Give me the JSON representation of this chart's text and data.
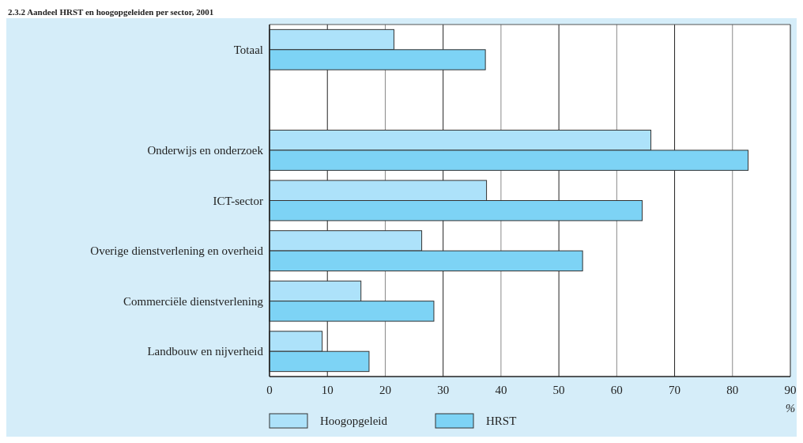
{
  "chart_data": {
    "type": "bar",
    "orientation": "horizontal",
    "title": "2.3.2 Aandeel HRST en hoogopgeleiden per sector, 2001",
    "xlabel": "%",
    "categories": [
      "Totaal",
      null,
      "Onderwijs en onderzoek",
      "ICT-sector",
      "Overige dienstverlening en overheid",
      "Commerciële dienstverlening",
      "Landbouw en nijverheid"
    ],
    "series": [
      {
        "name": "Hoogopgeleid",
        "color": "#ade2fa",
        "values": [
          21.5,
          null,
          65.9,
          37.5,
          26.3,
          15.8,
          9.1
        ]
      },
      {
        "name": "HRST",
        "color": "#7dd3f5",
        "values": [
          37.3,
          null,
          82.7,
          64.4,
          54.1,
          28.4,
          17.2
        ]
      }
    ],
    "xlim": [
      0,
      90
    ],
    "xticks": [
      0,
      10,
      20,
      30,
      40,
      50,
      60,
      70,
      80,
      90
    ],
    "grid": "x",
    "legend": "bottom"
  }
}
